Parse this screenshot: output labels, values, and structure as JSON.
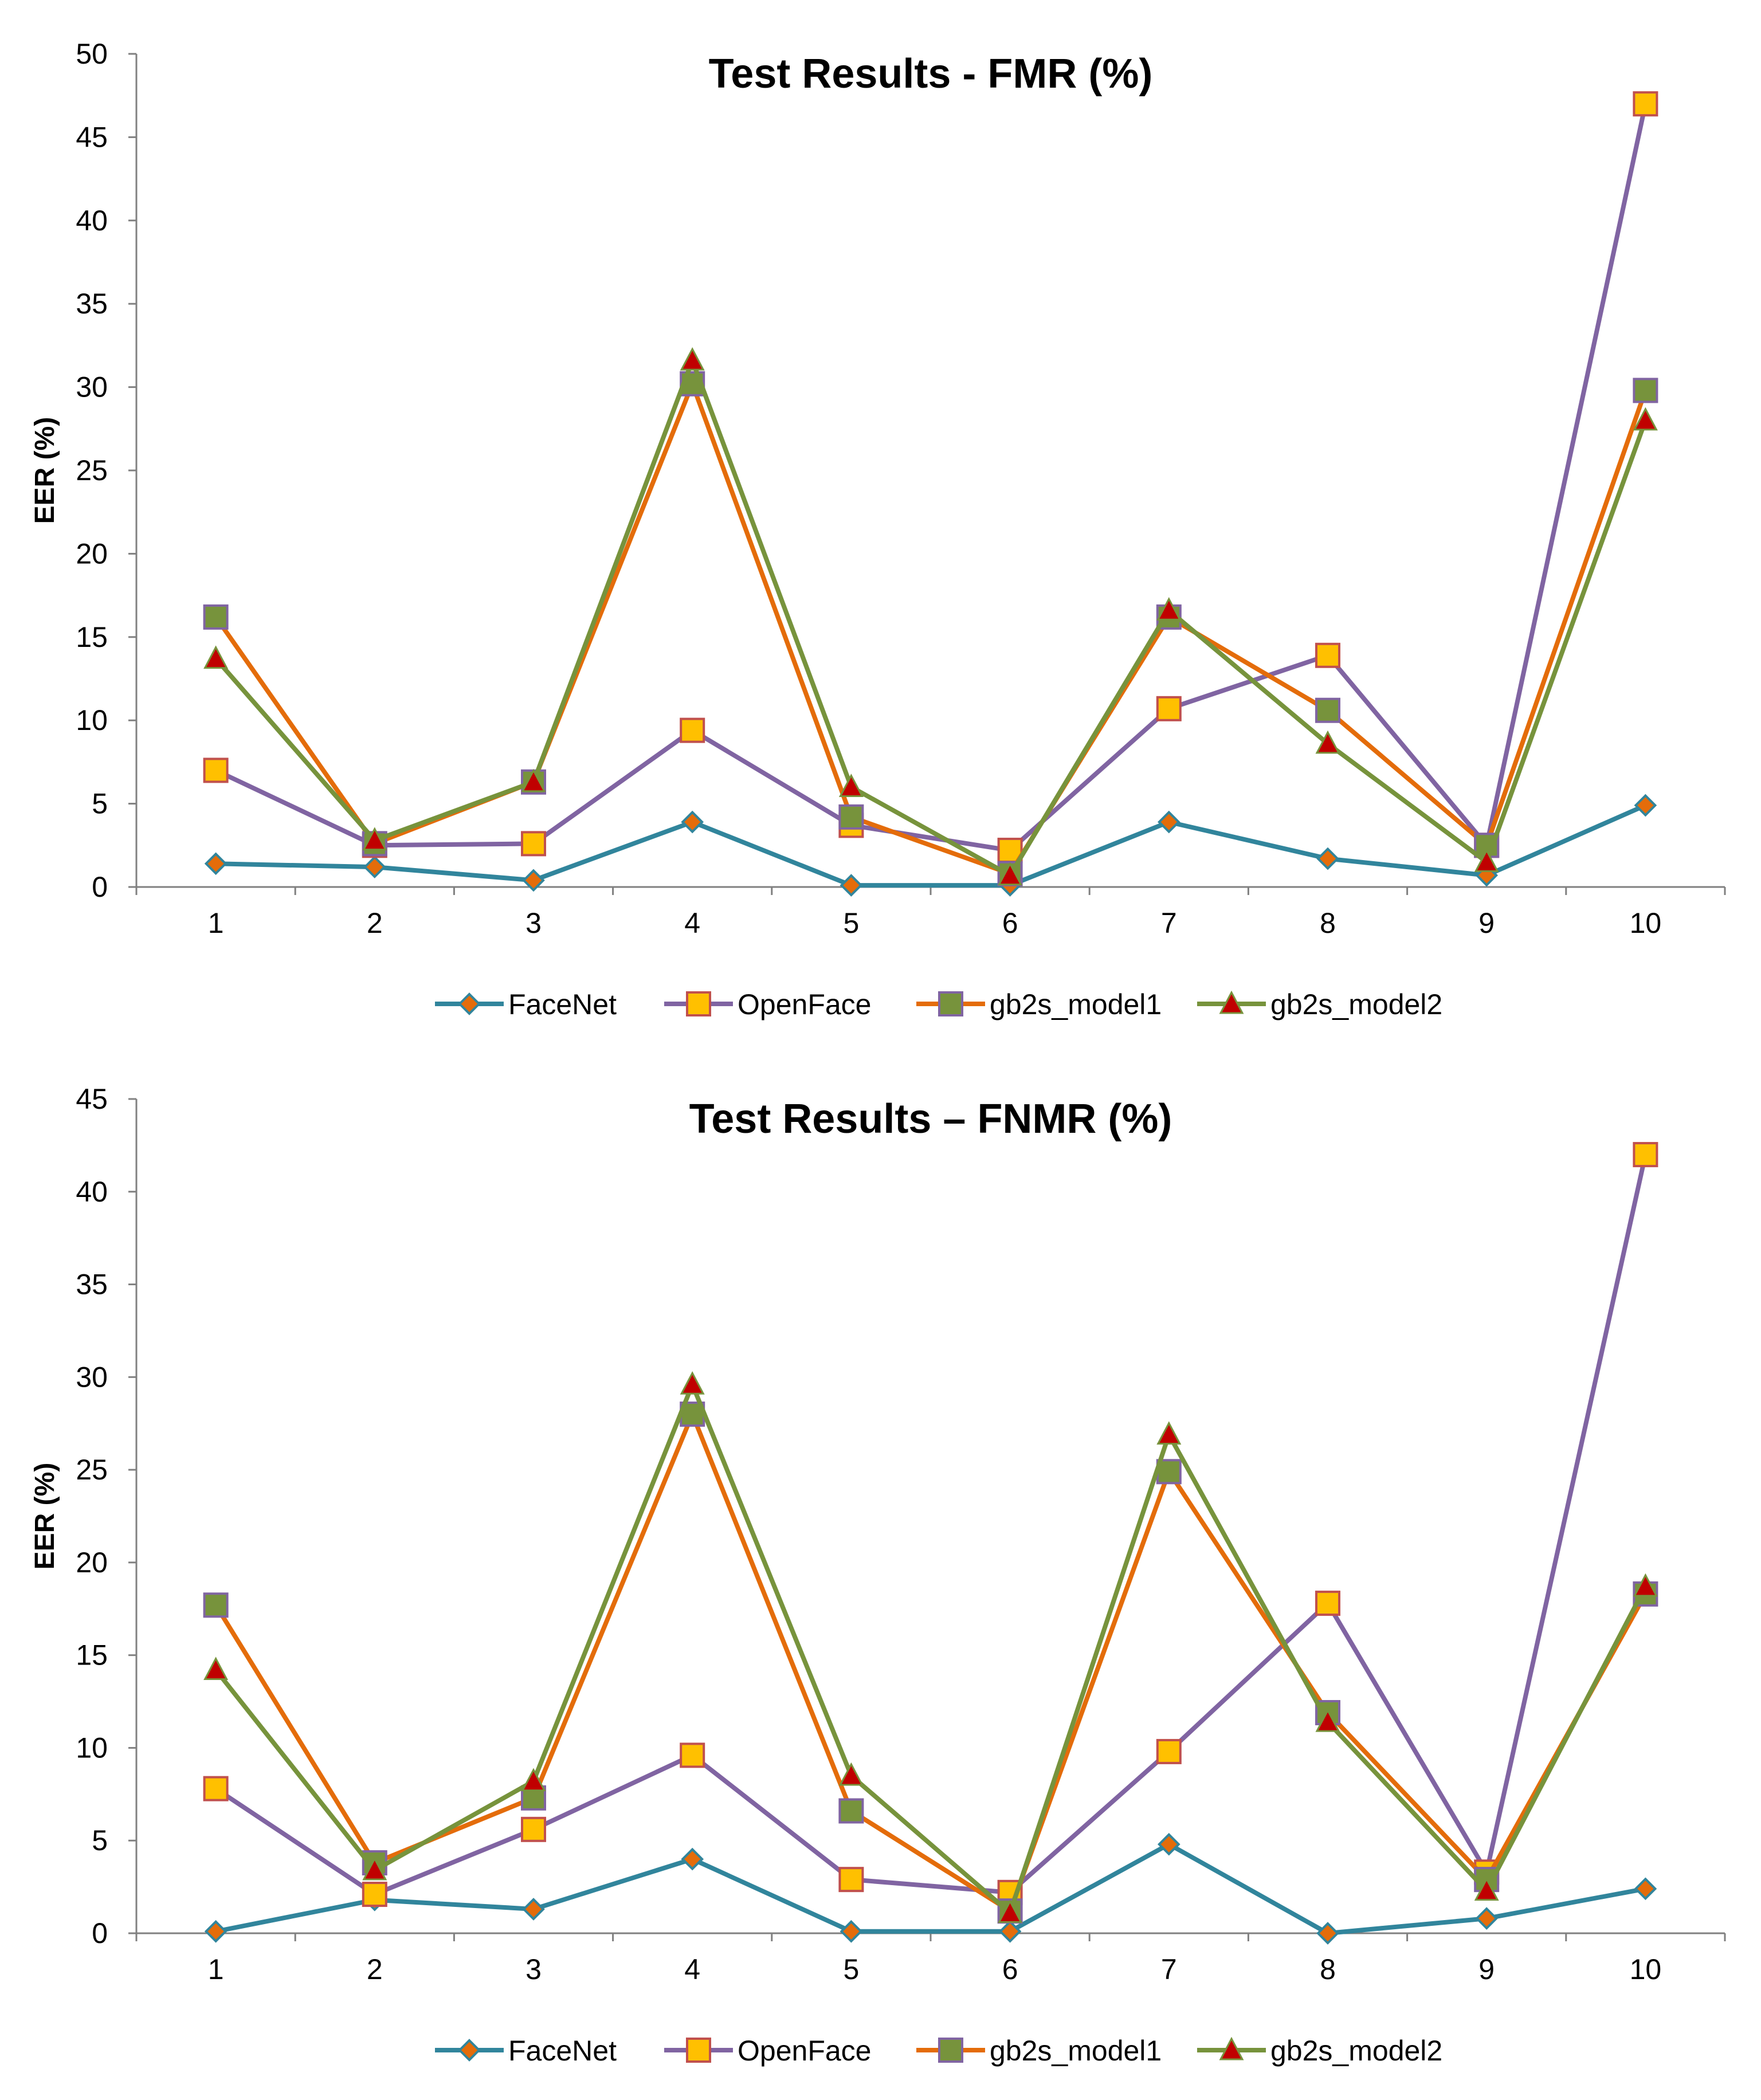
{
  "colors": {
    "FaceNet": "#31859c",
    "OpenFace": "#8064a2",
    "gb2s_model1": "#e46c0a",
    "gb2s_model2": "#77933c",
    "axis": "#808080",
    "marker_facenet": "#e46c0a",
    "marker_openface": "#ffc000",
    "marker_openface_border": "#c0504d",
    "marker_model1": "#77933c",
    "marker_model2": "#c00000"
  },
  "chart_data": [
    {
      "type": "line",
      "title": "Test Results - FMR (%)",
      "xlabel": "",
      "ylabel": "EER (%)",
      "x": [
        1,
        2,
        3,
        4,
        5,
        6,
        7,
        8,
        9,
        10
      ],
      "ylim": [
        0,
        50
      ],
      "yticks": [
        0,
        5,
        10,
        15,
        20,
        25,
        30,
        35,
        40,
        45,
        50
      ],
      "grid": false,
      "legend_position": "bottom",
      "series": [
        {
          "name": "FaceNet",
          "marker": "diamond",
          "values": [
            1.4,
            1.2,
            0.4,
            3.9,
            0.1,
            0.1,
            3.9,
            1.7,
            0.7,
            4.9
          ]
        },
        {
          "name": "OpenFace",
          "marker": "square",
          "values": [
            7.0,
            2.5,
            2.6,
            9.4,
            3.7,
            2.2,
            10.7,
            13.9,
            2.5,
            47.0
          ]
        },
        {
          "name": "gb2s_model1",
          "marker": "square",
          "values": [
            16.2,
            2.6,
            6.3,
            30.2,
            4.2,
            0.8,
            16.2,
            10.6,
            2.5,
            29.8
          ]
        },
        {
          "name": "gb2s_model2",
          "marker": "triangle",
          "values": [
            13.7,
            2.8,
            6.3,
            31.6,
            6.0,
            0.7,
            16.6,
            8.6,
            1.5,
            28.0
          ]
        }
      ]
    },
    {
      "type": "line",
      "title": "Test Results – FNMR (%)",
      "xlabel": "",
      "ylabel": "EER (%)",
      "x": [
        1,
        2,
        3,
        4,
        5,
        6,
        7,
        8,
        9,
        10
      ],
      "ylim": [
        0,
        45
      ],
      "yticks": [
        0,
        5,
        10,
        15,
        20,
        25,
        30,
        35,
        40,
        45
      ],
      "grid": false,
      "legend_position": "bottom",
      "series": [
        {
          "name": "FaceNet",
          "marker": "diamond",
          "values": [
            0.1,
            1.8,
            1.3,
            4.0,
            0.1,
            0.1,
            4.8,
            0.0,
            0.8,
            2.4
          ]
        },
        {
          "name": "OpenFace",
          "marker": "square",
          "values": [
            7.8,
            2.1,
            5.6,
            9.6,
            2.9,
            2.2,
            9.8,
            17.8,
            3.3,
            42.0
          ]
        },
        {
          "name": "gb2s_model1",
          "marker": "square",
          "values": [
            17.7,
            3.8,
            7.3,
            28.0,
            6.6,
            1.2,
            24.9,
            11.9,
            2.9,
            18.3
          ]
        },
        {
          "name": "gb2s_model2",
          "marker": "triangle",
          "values": [
            14.2,
            3.4,
            8.2,
            29.6,
            8.5,
            1.1,
            26.9,
            11.4,
            2.3,
            18.7
          ]
        }
      ]
    }
  ]
}
